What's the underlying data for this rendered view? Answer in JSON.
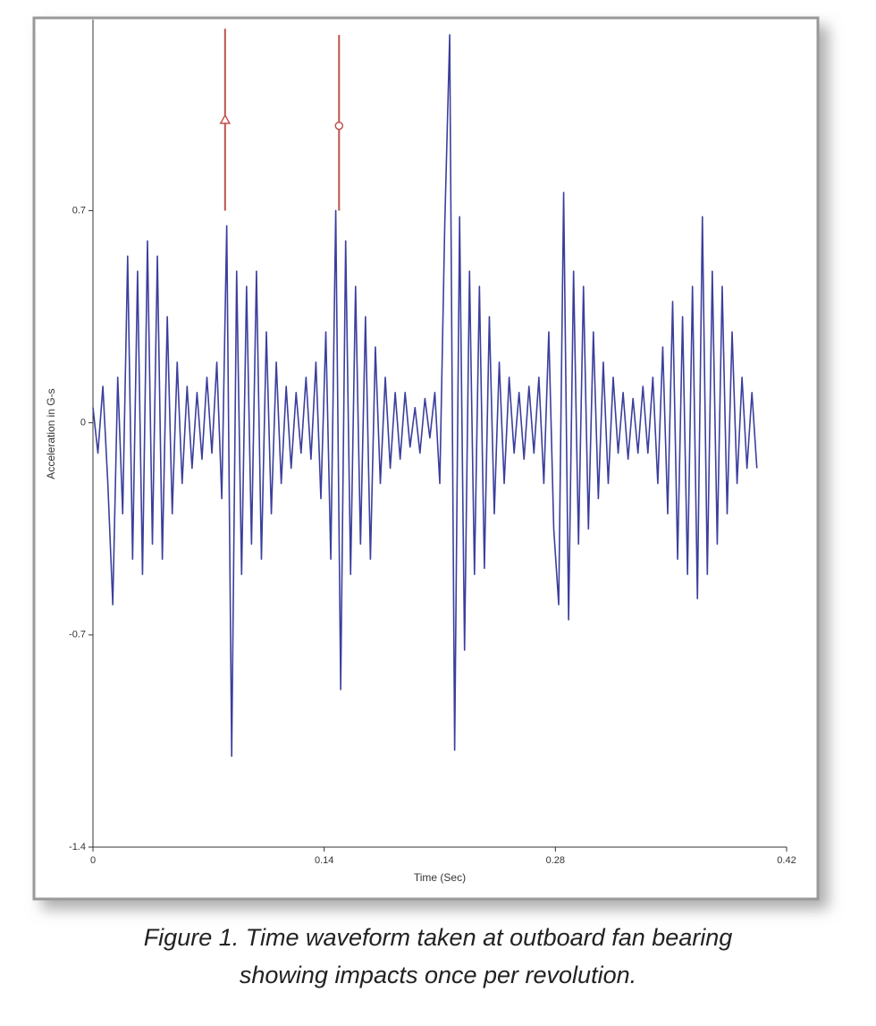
{
  "chart_data": {
    "type": "line",
    "x_label": "Time (Sec)",
    "y_label": "Acceleration in G-s",
    "caption": [
      "Figure 1. Time waveform taken at outboard fan bearing",
      "showing impacts once per revolution."
    ],
    "xlim": [
      0,
      0.42
    ],
    "xticks": [
      0,
      0.14,
      0.28,
      0.42
    ],
    "ylim": [
      -1.4,
      1.33
    ],
    "yticks": [
      -1.4,
      -0.7,
      0,
      0.7
    ],
    "x": [
      0,
      0.003,
      0.006,
      0.009,
      0.012,
      0.015,
      0.018,
      0.021,
      0.024,
      0.027,
      0.03,
      0.033,
      0.036,
      0.039,
      0.042,
      0.045,
      0.048,
      0.051,
      0.054,
      0.057,
      0.06,
      0.063,
      0.066,
      0.069,
      0.072,
      0.075,
      0.078,
      0.081,
      0.084,
      0.087,
      0.09,
      0.093,
      0.096,
      0.099,
      0.102,
      0.105,
      0.108,
      0.111,
      0.114,
      0.117,
      0.12,
      0.123,
      0.126,
      0.129,
      0.132,
      0.135,
      0.138,
      0.141,
      0.144,
      0.147,
      0.15,
      0.153,
      0.156,
      0.159,
      0.162,
      0.165,
      0.168,
      0.171,
      0.174,
      0.177,
      0.18,
      0.183,
      0.186,
      0.189,
      0.192,
      0.195,
      0.198,
      0.201,
      0.204,
      0.207,
      0.21,
      0.213,
      0.216,
      0.219,
      0.222,
      0.225,
      0.228,
      0.231,
      0.234,
      0.237,
      0.24,
      0.243,
      0.246,
      0.249,
      0.252,
      0.255,
      0.258,
      0.261,
      0.264,
      0.267,
      0.27,
      0.273,
      0.276,
      0.279,
      0.282,
      0.285,
      0.288,
      0.291,
      0.294,
      0.297,
      0.3,
      0.303,
      0.306,
      0.309,
      0.312,
      0.315,
      0.318,
      0.321,
      0.324,
      0.327,
      0.33,
      0.333,
      0.336,
      0.339,
      0.342,
      0.345,
      0.348,
      0.351,
      0.354,
      0.357,
      0.36,
      0.363,
      0.366,
      0.369,
      0.372,
      0.375,
      0.378,
      0.381,
      0.384,
      0.387,
      0.39,
      0.393,
      0.396,
      0.399,
      0.402
    ],
    "series": [
      {
        "color": "#3b3f9c",
        "values": [
          0.05,
          -0.1,
          0.12,
          -0.2,
          -0.6,
          0.15,
          -0.3,
          0.55,
          -0.45,
          0.5,
          -0.5,
          0.6,
          -0.4,
          0.55,
          -0.45,
          0.35,
          -0.3,
          0.2,
          -0.2,
          0.12,
          -0.15,
          0.1,
          -0.12,
          0.15,
          -0.1,
          0.2,
          -0.25,
          0.65,
          -1.1,
          0.5,
          -0.5,
          0.45,
          -0.4,
          0.5,
          -0.45,
          0.3,
          -0.3,
          0.2,
          -0.2,
          0.12,
          -0.15,
          0.1,
          -0.1,
          0.15,
          -0.12,
          0.2,
          -0.25,
          0.3,
          -0.45,
          0.7,
          -0.88,
          0.6,
          -0.5,
          0.45,
          -0.4,
          0.35,
          -0.45,
          0.25,
          -0.2,
          0.15,
          -0.15,
          0.1,
          -0.12,
          0.1,
          -0.08,
          0.05,
          -0.1,
          0.08,
          -0.05,
          0.1,
          -0.2,
          0.65,
          1.28,
          -1.08,
          0.68,
          -0.75,
          0.5,
          -0.5,
          0.45,
          -0.48,
          0.35,
          -0.3,
          0.2,
          -0.2,
          0.15,
          -0.1,
          0.1,
          -0.12,
          0.12,
          -0.1,
          0.15,
          -0.2,
          0.3,
          -0.35,
          -0.6,
          0.76,
          -0.65,
          0.5,
          -0.4,
          0.45,
          -0.35,
          0.3,
          -0.25,
          0.2,
          -0.2,
          0.15,
          -0.1,
          0.1,
          -0.12,
          0.08,
          -0.1,
          0.12,
          -0.1,
          0.15,
          -0.2,
          0.25,
          -0.3,
          0.4,
          -0.45,
          0.35,
          -0.5,
          0.45,
          -0.58,
          0.68,
          -0.5,
          0.5,
          -0.4,
          0.45,
          -0.3,
          0.3,
          -0.2,
          0.15,
          -0.15,
          0.1,
          -0.15
        ]
      }
    ],
    "cursors": [
      {
        "x": 0.08,
        "y": [
          0.7,
          1.3
        ],
        "symbol_y": 1.0,
        "symbol": "triangle",
        "color": "#c0504d"
      },
      {
        "x": 0.149,
        "y": [
          0.7,
          1.28
        ],
        "symbol_y": 0.98,
        "symbol": "circle",
        "color": "#c0504d"
      }
    ]
  }
}
